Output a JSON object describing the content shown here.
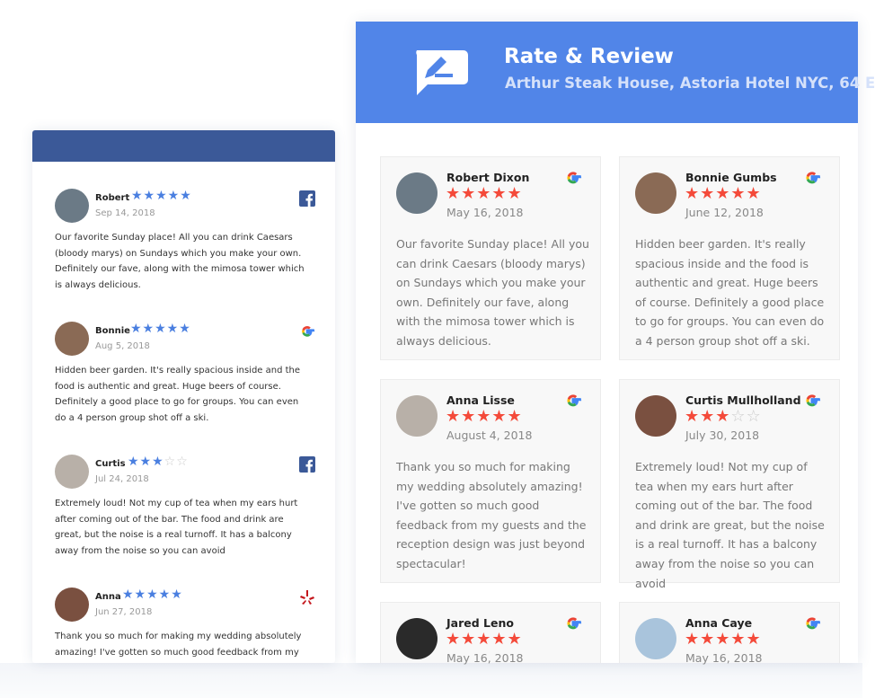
{
  "colors": {
    "facebook": "#3b5998",
    "header": "#5185e8",
    "left_star": "#4a7fe0",
    "right_star": "#f44a3a",
    "yelp": "#c4161c"
  },
  "left_widget": {
    "reviews": [
      {
        "name": "Robert",
        "rating": 5,
        "date": "Sep 14, 2018",
        "source": "facebook-icon",
        "text": "Our favorite Sunday place! All you can drink Caesars (bloody marys) on Sundays which you make your own. Definitely our fave, along with the mimosa tower which is always delicious."
      },
      {
        "name": "Bonnie",
        "rating": 5,
        "date": "Aug 5, 2018",
        "source": "google-icon",
        "text": "Hidden beer garden. It's really spacious inside and the food is authentic and great. Huge beers of course. Definitely a good place to go for groups. You can even do a 4 person group shot off a ski."
      },
      {
        "name": "Curtis",
        "rating": 3,
        "date": "Jul 24, 2018",
        "source": "facebook-icon",
        "text": "Extremely loud! Not my cup of tea when my ears hurt after coming out of the bar. The food and drink are great, but the noise is a real turnoff. It has a balcony away from the noise so you can avoid"
      },
      {
        "name": "Anna",
        "rating": 5,
        "date": "Jun 27, 2018",
        "source": "yelp-icon",
        "text": "Thank you so much for making my wedding absolutely amazing! I've gotten so much good feedback from my"
      }
    ]
  },
  "right_widget": {
    "title": "Rate & Review",
    "subtitle": "Arthur Steak House, Astoria Hotel NYC, 64 E",
    "reviews": [
      {
        "name": "Robert Dixon",
        "rating": 5,
        "date": "May 16, 2018",
        "source": "google-icon",
        "text": "Our favorite Sunday place! All you can drink Caesars (bloody marys) on Sundays which you make your own. Definitely our fave, along with the mimosa tower which is always delicious."
      },
      {
        "name": "Bonnie Gumbs",
        "rating": 5,
        "date": "June 12, 2018",
        "source": "google-icon",
        "text": "Hidden beer garden. It's really spacious inside and the food is authentic and great. Huge beers of course. Definitely a good place to go for groups. You can even do a 4 person group shot off a ski."
      },
      {
        "name": "Anna Lisse",
        "rating": 5,
        "date": "August 4, 2018",
        "source": "google-icon",
        "text": "Thank you so much for making my wedding absolutely amazing! I've gotten so much good feedback from my guests and the reception design was just beyond spectacular!"
      },
      {
        "name": "Curtis Mullholland",
        "rating": 3,
        "date": "July 30, 2018",
        "source": "google-icon",
        "text": "Extremely loud! Not my cup of tea when my ears hurt after coming out of the bar. The food and drink are great, but the noise is a real turnoff. It has a balcony away from the noise so you can avoid"
      },
      {
        "name": "Jared Leno",
        "rating": 5,
        "date": "May 16, 2018",
        "source": "google-icon",
        "text": ""
      },
      {
        "name": "Anna Caye",
        "rating": 5,
        "date": "May 16, 2018",
        "source": "google-icon",
        "text": ""
      }
    ]
  }
}
